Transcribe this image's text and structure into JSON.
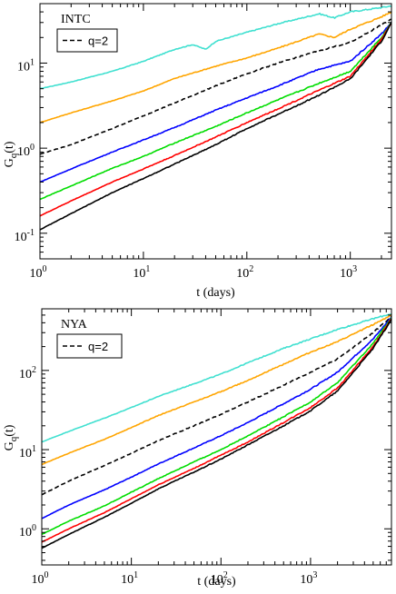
{
  "chart_data": [
    {
      "type": "line",
      "panel_label": "INTC",
      "xlabel": "t (days)",
      "ylabel": "G_q(t)",
      "xscale": "log",
      "yscale": "log",
      "xlim": [
        1,
        2500
      ],
      "ylim": [
        0.05,
        50
      ],
      "x_ticks": [
        {
          "value": 1,
          "mant": "10",
          "exp": "0"
        },
        {
          "value": 10,
          "mant": "10",
          "exp": "1"
        },
        {
          "value": 100,
          "mant": "10",
          "exp": "2"
        },
        {
          "value": 1000,
          "mant": "10",
          "exp": "3"
        }
      ],
      "y_ticks": [
        {
          "value": 0.1,
          "mant": "10",
          "exp": "-1"
        },
        {
          "value": 1,
          "mant": "10",
          "exp": "0"
        },
        {
          "value": 10,
          "mant": "10",
          "exp": "1"
        }
      ],
      "legend": {
        "entries": [
          {
            "label": "q=2",
            "color": "#000000",
            "dash": true
          }
        ],
        "placement": "top-left"
      },
      "series": [
        {
          "color": "#40e0d0",
          "dash": false,
          "points": [
            [
              1,
              5.0
            ],
            [
              2,
              6.0
            ],
            [
              5,
              8.0
            ],
            [
              10,
              10.5
            ],
            [
              20,
              14.5
            ],
            [
              30,
              16.5
            ],
            [
              40,
              14.5
            ],
            [
              50,
              18.0
            ],
            [
              100,
              23.0
            ],
            [
              200,
              29.0
            ],
            [
              500,
              38.0
            ],
            [
              700,
              34.0
            ],
            [
              1000,
              40.0
            ],
            [
              2000,
              45.0
            ],
            [
              2500,
              47.0
            ]
          ]
        },
        {
          "color": "#ffa500",
          "dash": false,
          "points": [
            [
              1,
              2.0
            ],
            [
              2,
              2.6
            ],
            [
              5,
              3.6
            ],
            [
              10,
              4.7
            ],
            [
              20,
              6.6
            ],
            [
              50,
              9.2
            ],
            [
              100,
              11.5
            ],
            [
              200,
              15.0
            ],
            [
              500,
              22.0
            ],
            [
              700,
              20.0
            ],
            [
              1000,
              25.0
            ],
            [
              2000,
              35.0
            ],
            [
              2500,
              40.0
            ]
          ]
        },
        {
          "color": "#000000",
          "dash": true,
          "points": [
            [
              1,
              0.85
            ],
            [
              2,
              1.1
            ],
            [
              5,
              1.7
            ],
            [
              10,
              2.4
            ],
            [
              20,
              3.4
            ],
            [
              50,
              5.4
            ],
            [
              100,
              7.5
            ],
            [
              200,
              10.0
            ],
            [
              500,
              14.0
            ],
            [
              1000,
              17.5
            ],
            [
              2000,
              28.0
            ],
            [
              2500,
              33.0
            ]
          ]
        },
        {
          "color": "#0000ff",
          "dash": false,
          "points": [
            [
              1,
              0.4
            ],
            [
              2,
              0.57
            ],
            [
              5,
              0.9
            ],
            [
              10,
              1.25
            ],
            [
              20,
              1.75
            ],
            [
              50,
              2.8
            ],
            [
              100,
              3.9
            ],
            [
              200,
              5.4
            ],
            [
              500,
              8.5
            ],
            [
              1000,
              10.5
            ],
            [
              2000,
              22.0
            ],
            [
              2500,
              30.0
            ]
          ]
        },
        {
          "color": "#00dd00",
          "dash": false,
          "points": [
            [
              1,
              0.25
            ],
            [
              2,
              0.36
            ],
            [
              5,
              0.58
            ],
            [
              10,
              0.8
            ],
            [
              20,
              1.15
            ],
            [
              50,
              1.8
            ],
            [
              100,
              2.6
            ],
            [
              200,
              3.7
            ],
            [
              500,
              5.8
            ],
            [
              1000,
              8.0
            ],
            [
              2000,
              20.0
            ],
            [
              2500,
              30.0
            ]
          ]
        },
        {
          "color": "#ff0000",
          "dash": false,
          "points": [
            [
              1,
              0.16
            ],
            [
              2,
              0.24
            ],
            [
              5,
              0.4
            ],
            [
              10,
              0.57
            ],
            [
              20,
              0.82
            ],
            [
              50,
              1.35
            ],
            [
              100,
              2.0
            ],
            [
              200,
              2.9
            ],
            [
              500,
              4.8
            ],
            [
              1000,
              7.0
            ],
            [
              2000,
              19.0
            ],
            [
              2500,
              30.0
            ]
          ]
        },
        {
          "color": "#000000",
          "dash": false,
          "points": [
            [
              1,
              0.11
            ],
            [
              2,
              0.17
            ],
            [
              5,
              0.3
            ],
            [
              10,
              0.44
            ],
            [
              20,
              0.65
            ],
            [
              50,
              1.1
            ],
            [
              100,
              1.7
            ],
            [
              200,
              2.5
            ],
            [
              500,
              4.2
            ],
            [
              1000,
              6.5
            ],
            [
              2000,
              18.0
            ],
            [
              2500,
              30.0
            ]
          ]
        }
      ]
    },
    {
      "type": "line",
      "panel_label": "NYA",
      "xlabel": "t (days)",
      "ylabel": "G_q(t)",
      "xscale": "log",
      "yscale": "log",
      "xlim": [
        1,
        8000
      ],
      "ylim": [
        0.35,
        600
      ],
      "x_ticks": [
        {
          "value": 1,
          "mant": "10",
          "exp": "0"
        },
        {
          "value": 10,
          "mant": "10",
          "exp": "1"
        },
        {
          "value": 100,
          "mant": "10",
          "exp": "2"
        },
        {
          "value": 1000,
          "mant": "10",
          "exp": "3"
        }
      ],
      "y_ticks": [
        {
          "value": 1,
          "mant": "10",
          "exp": "0"
        },
        {
          "value": 10,
          "mant": "10",
          "exp": "1"
        },
        {
          "value": 100,
          "mant": "10",
          "exp": "2"
        }
      ],
      "legend": {
        "entries": [
          {
            "label": "q=2",
            "color": "#000000",
            "dash": true
          }
        ],
        "placement": "top-left"
      },
      "series": [
        {
          "color": "#40e0d0",
          "dash": false,
          "points": [
            [
              1,
              12.5
            ],
            [
              2,
              17.0
            ],
            [
              5,
              25.0
            ],
            [
              10,
              34.0
            ],
            [
              20,
              47.0
            ],
            [
              50,
              68.0
            ],
            [
              100,
              90.0
            ],
            [
              200,
              125.0
            ],
            [
              500,
              190.0
            ],
            [
              1000,
              250.0
            ],
            [
              2000,
              330.0
            ],
            [
              5000,
              450.0
            ],
            [
              8000,
              520.0
            ]
          ]
        },
        {
          "color": "#ffa500",
          "dash": false,
          "points": [
            [
              1,
              6.5
            ],
            [
              2,
              9.0
            ],
            [
              5,
              13.5
            ],
            [
              10,
              19.0
            ],
            [
              20,
              27.0
            ],
            [
              50,
              40.0
            ],
            [
              100,
              54.0
            ],
            [
              200,
              75.0
            ],
            [
              500,
              120.0
            ],
            [
              1000,
              170.0
            ],
            [
              2000,
              230.0
            ],
            [
              5000,
              380.0
            ],
            [
              8000,
              500.0
            ]
          ]
        },
        {
          "color": "#000000",
          "dash": true,
          "points": [
            [
              1,
              2.7
            ],
            [
              2,
              4.0
            ],
            [
              5,
              6.3
            ],
            [
              10,
              9.0
            ],
            [
              20,
              13.0
            ],
            [
              50,
              20.0
            ],
            [
              100,
              28.0
            ],
            [
              200,
              40.0
            ],
            [
              500,
              65.0
            ],
            [
              1000,
              95.0
            ],
            [
              2000,
              140.0
            ],
            [
              5000,
              300.0
            ],
            [
              8000,
              480.0
            ]
          ]
        },
        {
          "color": "#0000ff",
          "dash": false,
          "points": [
            [
              1,
              1.35
            ],
            [
              2,
              2.0
            ],
            [
              5,
              3.1
            ],
            [
              10,
              4.5
            ],
            [
              20,
              6.6
            ],
            [
              50,
              10.5
            ],
            [
              100,
              15.0
            ],
            [
              200,
              22.0
            ],
            [
              500,
              38.0
            ],
            [
              1000,
              58.0
            ],
            [
              2000,
              95.0
            ],
            [
              5000,
              250.0
            ],
            [
              8000,
              470.0
            ]
          ]
        },
        {
          "color": "#00dd00",
          "dash": false,
          "points": [
            [
              1,
              0.85
            ],
            [
              2,
              1.25
            ],
            [
              5,
              1.95
            ],
            [
              10,
              2.9
            ],
            [
              20,
              4.3
            ],
            [
              50,
              7.0
            ],
            [
              100,
              10.0
            ],
            [
              200,
              15.0
            ],
            [
              500,
              26.0
            ],
            [
              1000,
              40.0
            ],
            [
              2000,
              70.0
            ],
            [
              5000,
              220.0
            ],
            [
              8000,
              460.0
            ]
          ]
        },
        {
          "color": "#ff0000",
          "dash": false,
          "points": [
            [
              1,
              0.68
            ],
            [
              2,
              1.0
            ],
            [
              5,
              1.6
            ],
            [
              10,
              2.4
            ],
            [
              20,
              3.6
            ],
            [
              50,
              5.8
            ],
            [
              100,
              8.5
            ],
            [
              200,
              12.5
            ],
            [
              500,
              22.0
            ],
            [
              1000,
              34.0
            ],
            [
              2000,
              60.0
            ],
            [
              5000,
              200.0
            ],
            [
              8000,
              450.0
            ]
          ]
        },
        {
          "color": "#000000",
          "dash": false,
          "points": [
            [
              1,
              0.57
            ],
            [
              2,
              0.85
            ],
            [
              5,
              1.4
            ],
            [
              10,
              2.1
            ],
            [
              20,
              3.2
            ],
            [
              50,
              5.2
            ],
            [
              100,
              7.6
            ],
            [
              200,
              11.5
            ],
            [
              500,
              20.0
            ],
            [
              1000,
              31.0
            ],
            [
              2000,
              55.0
            ],
            [
              5000,
              190.0
            ],
            [
              8000,
              440.0
            ]
          ]
        }
      ]
    }
  ]
}
